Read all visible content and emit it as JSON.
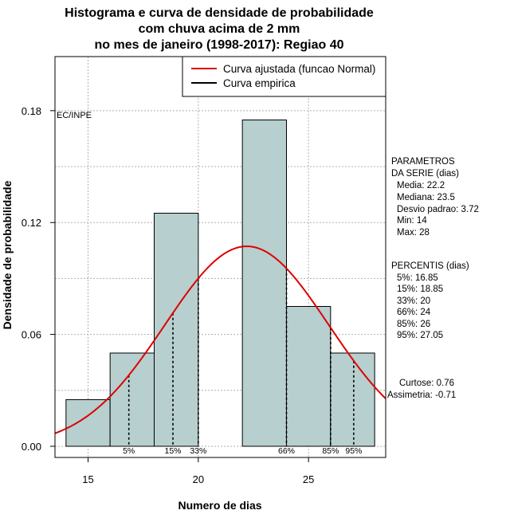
{
  "chart_data": {
    "type": "bar",
    "title": [
      "Histograma e curva de densidade de probabilidade",
      "com chuva acima de 2 mm",
      "no mes de janeiro (1998-2017): Regiao 40"
    ],
    "xlabel": "Numero de dias",
    "ylabel": "Densidade de probabilidade",
    "xlim": [
      13.5,
      28.5
    ],
    "ylim": [
      -0.006,
      0.209
    ],
    "x_ticks": [
      15,
      20,
      25
    ],
    "y_ticks": [
      0.0,
      0.06,
      0.12,
      0.18
    ],
    "y_tick_labels": [
      "0.00",
      "0.06",
      "0.12",
      "0.18"
    ],
    "grid": true,
    "bin_edges": [
      14,
      16,
      18,
      20,
      22,
      24,
      26,
      28
    ],
    "values": [
      0.025,
      0.05,
      0.125,
      0.0,
      0.175,
      0.075,
      0.05
    ],
    "bar_color": "#b7cfcf",
    "normal_curve": {
      "mean": 22.2,
      "sd": 3.72,
      "color": "#dd0000"
    },
    "percentiles": [
      {
        "label": "5%",
        "x": 16.85
      },
      {
        "label": "15%",
        "x": 18.85
      },
      {
        "label": "33%",
        "x": 20
      },
      {
        "label": "66%",
        "x": 24
      },
      {
        "label": "85%",
        "x": 26
      },
      {
        "label": "95%",
        "x": 27.05
      }
    ],
    "watermark": "EC/INPE",
    "legend": [
      {
        "label": "Curva ajustada (funcao Normal)",
        "color": "#dd0000"
      },
      {
        "label": "Curva empirica",
        "color": "#000000"
      }
    ]
  },
  "side_panel": {
    "params_title": [
      "PARAMETROS",
      "DA SERIE (dias)"
    ],
    "params": [
      "Media: 22.2",
      "Mediana: 23.5",
      "Desvio padrao: 3.72",
      "Min: 14",
      "Max: 28"
    ],
    "percentis_title": "PERCENTIS (dias)",
    "percentis": [
      "5%: 16.85",
      "15%: 18.85",
      "33%: 20",
      "66%: 24",
      "85%: 26",
      "95%: 27.05"
    ],
    "stats": [
      "Curtose: 0.76",
      "Assimetria: -0.71"
    ]
  }
}
